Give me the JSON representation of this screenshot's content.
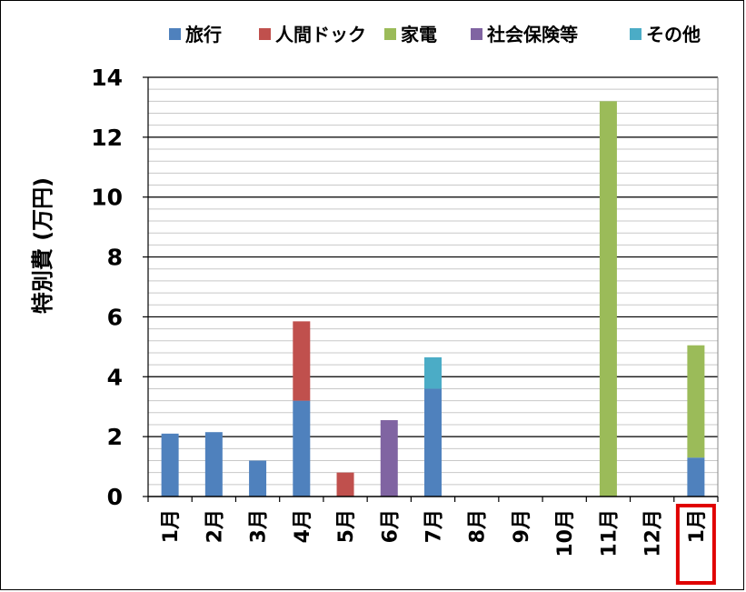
{
  "chart_data": {
    "type": "bar",
    "stacked": true,
    "title": "",
    "xlabel": "",
    "ylabel": "特別費 (万円)",
    "ylim": [
      0,
      14
    ],
    "y_ticks": [
      0,
      2,
      4,
      6,
      8,
      10,
      12,
      14
    ],
    "minor_grid_step": 0.4,
    "grid": true,
    "legend_position": "top",
    "categories": [
      "1月",
      "2月",
      "3月",
      "4月",
      "5月",
      "6月",
      "7月",
      "8月",
      "9月",
      "10月",
      "11月",
      "12月",
      "1月"
    ],
    "highlighted_category_index": 12,
    "highlight_color": "#e00000",
    "series": [
      {
        "name": "旅行",
        "color": "#4f81bd",
        "values": [
          2.1,
          2.15,
          1.2,
          3.2,
          0,
          0,
          3.6,
          0,
          0,
          0,
          0,
          0,
          1.3
        ]
      },
      {
        "name": "人間ドック",
        "color": "#c0504d",
        "values": [
          0,
          0,
          0,
          2.65,
          0.8,
          0,
          0,
          0,
          0,
          0,
          0,
          0,
          0
        ]
      },
      {
        "name": "家電",
        "color": "#9bbb59",
        "values": [
          0,
          0,
          0,
          0,
          0,
          0,
          0,
          0,
          0,
          0,
          13.2,
          0,
          3.75
        ]
      },
      {
        "name": "社会保険等",
        "color": "#8064a2",
        "values": [
          0,
          0,
          0,
          0,
          0,
          2.55,
          0,
          0,
          0,
          0,
          0,
          0,
          0
        ]
      },
      {
        "name": "その他",
        "color": "#4bacc6",
        "values": [
          0,
          0,
          0,
          0,
          0,
          0,
          1.05,
          0,
          0,
          0,
          0,
          0,
          0
        ]
      }
    ]
  }
}
